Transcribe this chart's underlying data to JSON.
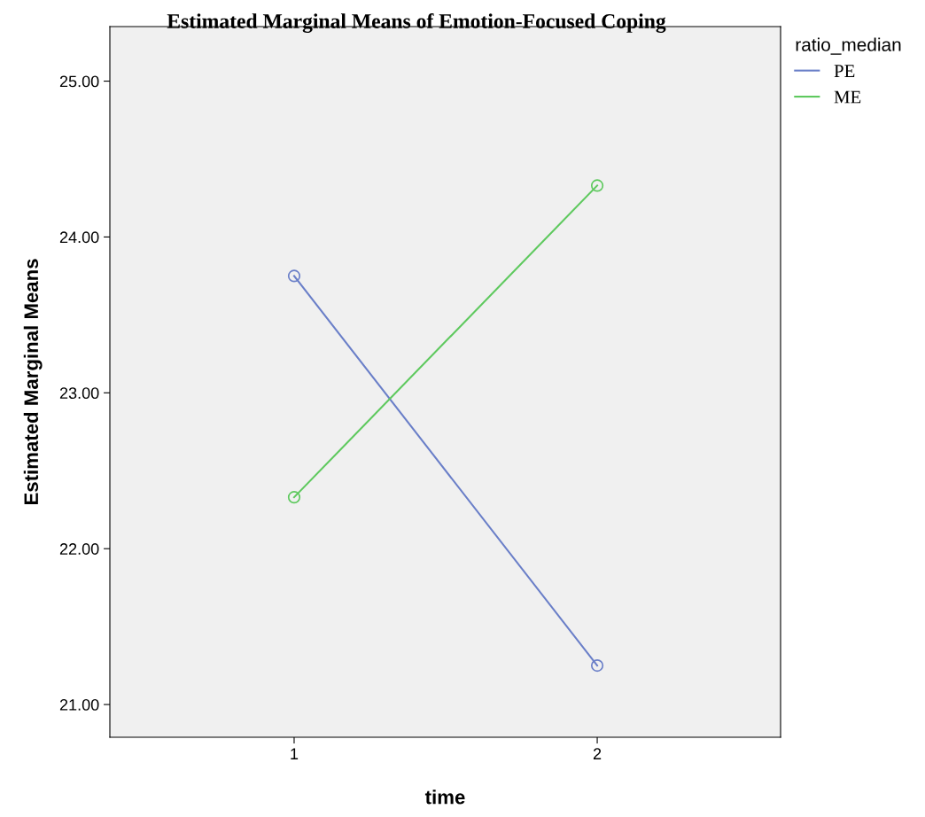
{
  "chart_data": {
    "type": "line",
    "title": "Estimated Marginal Means of Emotion-Focused Coping",
    "xlabel": "time",
    "ylabel": "Estimated Marginal Means",
    "legend_title": "ratio_median",
    "categories": [
      "1",
      "2"
    ],
    "series": [
      {
        "name": "PE",
        "color": "#6a7fc8",
        "values": [
          23.75,
          21.25
        ]
      },
      {
        "name": "ME",
        "color": "#5ec95e",
        "values": [
          22.33,
          24.33
        ]
      }
    ],
    "ylim": [
      20.79,
      25.35
    ],
    "yticks": [
      {
        "value": 21,
        "label": "21.00"
      },
      {
        "value": 22,
        "label": "22.00"
      },
      {
        "value": 23,
        "label": "23.00"
      },
      {
        "value": 24,
        "label": "24.00"
      },
      {
        "value": 25,
        "label": "25.00"
      }
    ],
    "grid": false,
    "legend": "top right",
    "marker": "circle",
    "line_style": "solid"
  }
}
